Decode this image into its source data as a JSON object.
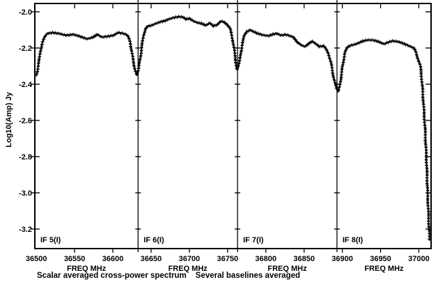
{
  "colors": {
    "foreground": "#000000",
    "background": "#ffffff"
  },
  "chart_data": {
    "type": "line",
    "title": "",
    "xlabel": "FREQ MHz",
    "ylabel": "Log10(Amp) Jy",
    "marker": "+",
    "grid": false,
    "x_range": [
      36498,
      37016
    ],
    "y_range": [
      -3.308,
      -1.954
    ],
    "y_ticks": [
      -2.0,
      -2.2,
      -2.4,
      -2.6,
      -2.8,
      -3.0,
      -3.2
    ],
    "x_tick_marks": [
      36550,
      36600,
      36650,
      36700,
      36750,
      36800,
      36850,
      36900,
      36950,
      37000
    ],
    "x_tick_labels": [
      36500,
      36550,
      36600,
      36650,
      36700,
      36750,
      36800,
      36850,
      36900,
      36950,
      37000
    ],
    "panels": [
      {
        "label": "IF 5(I)",
        "f_start": 36498,
        "f_end": 36633
      },
      {
        "label": "IF 6(I)",
        "f_start": 36633,
        "f_end": 36763
      },
      {
        "label": "IF 7(I)",
        "f_start": 36763,
        "f_end": 36893
      },
      {
        "label": "IF 8(I)",
        "f_start": 36893,
        "f_end": 37016
      }
    ],
    "captions": [
      "Scalar averaged cross-power spectrum",
      "Several baselines averaged"
    ],
    "series": [
      {
        "name": "scalar averaged cross-power amplitude",
        "points": [
          [
            36500,
            -2.35
          ],
          [
            36502,
            -2.31
          ],
          [
            36504,
            -2.26
          ],
          [
            36505,
            -2.22
          ],
          [
            36508,
            -2.17
          ],
          [
            36511,
            -2.14
          ],
          [
            36514,
            -2.12
          ],
          [
            36521,
            -2.115
          ],
          [
            36530,
            -2.12
          ],
          [
            36539,
            -2.13
          ],
          [
            36548,
            -2.125
          ],
          [
            36557,
            -2.135
          ],
          [
            36566,
            -2.15
          ],
          [
            36574,
            -2.14
          ],
          [
            36580,
            -2.125
          ],
          [
            36586,
            -2.14
          ],
          [
            36594,
            -2.135
          ],
          [
            36601,
            -2.13
          ],
          [
            36607,
            -2.115
          ],
          [
            36614,
            -2.12
          ],
          [
            36619,
            -2.13
          ],
          [
            36623,
            -2.17
          ],
          [
            36625,
            -2.23
          ],
          [
            36628,
            -2.3
          ],
          [
            36631,
            -2.35
          ],
          [
            36634,
            -2.31
          ],
          [
            36637,
            -2.22
          ],
          [
            36640,
            -2.13
          ],
          [
            36643,
            -2.09
          ],
          [
            36646,
            -2.08
          ],
          [
            36651,
            -2.075
          ],
          [
            36656,
            -2.065
          ],
          [
            36662,
            -2.055
          ],
          [
            36668,
            -2.05
          ],
          [
            36674,
            -2.04
          ],
          [
            36680,
            -2.032
          ],
          [
            36686,
            -2.027
          ],
          [
            36692,
            -2.03
          ],
          [
            36696,
            -2.042
          ],
          [
            36700,
            -2.036
          ],
          [
            36705,
            -2.05
          ],
          [
            36710,
            -2.06
          ],
          [
            36716,
            -2.065
          ],
          [
            36722,
            -2.075
          ],
          [
            36727,
            -2.062
          ],
          [
            36731,
            -2.078
          ],
          [
            36736,
            -2.072
          ],
          [
            36741,
            -2.052
          ],
          [
            36745,
            -2.055
          ],
          [
            36749,
            -2.068
          ],
          [
            36753,
            -2.09
          ],
          [
            36757,
            -2.16
          ],
          [
            36760,
            -2.25
          ],
          [
            36762,
            -2.32
          ],
          [
            36766,
            -2.27
          ],
          [
            36769,
            -2.18
          ],
          [
            36772,
            -2.13
          ],
          [
            36775,
            -2.11
          ],
          [
            36779,
            -2.1
          ],
          [
            36784,
            -2.11
          ],
          [
            36790,
            -2.12
          ],
          [
            36796,
            -2.128
          ],
          [
            36803,
            -2.133
          ],
          [
            36809,
            -2.124
          ],
          [
            36815,
            -2.12
          ],
          [
            36820,
            -2.13
          ],
          [
            36826,
            -2.126
          ],
          [
            36831,
            -2.133
          ],
          [
            36836,
            -2.14
          ],
          [
            36841,
            -2.166
          ],
          [
            36847,
            -2.186
          ],
          [
            36851,
            -2.192
          ],
          [
            36856,
            -2.175
          ],
          [
            36861,
            -2.163
          ],
          [
            36866,
            -2.178
          ],
          [
            36870,
            -2.193
          ],
          [
            36875,
            -2.188
          ],
          [
            36878,
            -2.2
          ],
          [
            36882,
            -2.23
          ],
          [
            36886,
            -2.3
          ],
          [
            36889,
            -2.37
          ],
          [
            36892,
            -2.42
          ],
          [
            36895,
            -2.44
          ],
          [
            36897,
            -2.4
          ],
          [
            36900,
            -2.31
          ],
          [
            36903,
            -2.23
          ],
          [
            36906,
            -2.2
          ],
          [
            36910,
            -2.187
          ],
          [
            36916,
            -2.18
          ],
          [
            36921,
            -2.172
          ],
          [
            36927,
            -2.162
          ],
          [
            36933,
            -2.156
          ],
          [
            36939,
            -2.156
          ],
          [
            36945,
            -2.162
          ],
          [
            36950,
            -2.17
          ],
          [
            36955,
            -2.178
          ],
          [
            36959,
            -2.17
          ],
          [
            36965,
            -2.161
          ],
          [
            36971,
            -2.164
          ],
          [
            36977,
            -2.17
          ],
          [
            36983,
            -2.18
          ],
          [
            36988,
            -2.19
          ],
          [
            36993,
            -2.2
          ],
          [
            36996,
            -2.22
          ],
          [
            36999,
            -2.26
          ],
          [
            37002,
            -2.3
          ],
          [
            37004,
            -2.38
          ],
          [
            37006,
            -2.5
          ],
          [
            37008,
            -2.64
          ],
          [
            37010,
            -2.82
          ],
          [
            37011,
            -2.94
          ],
          [
            37012,
            -3.06
          ],
          [
            37013,
            -3.16
          ],
          [
            37014,
            -3.26
          ]
        ]
      }
    ]
  }
}
